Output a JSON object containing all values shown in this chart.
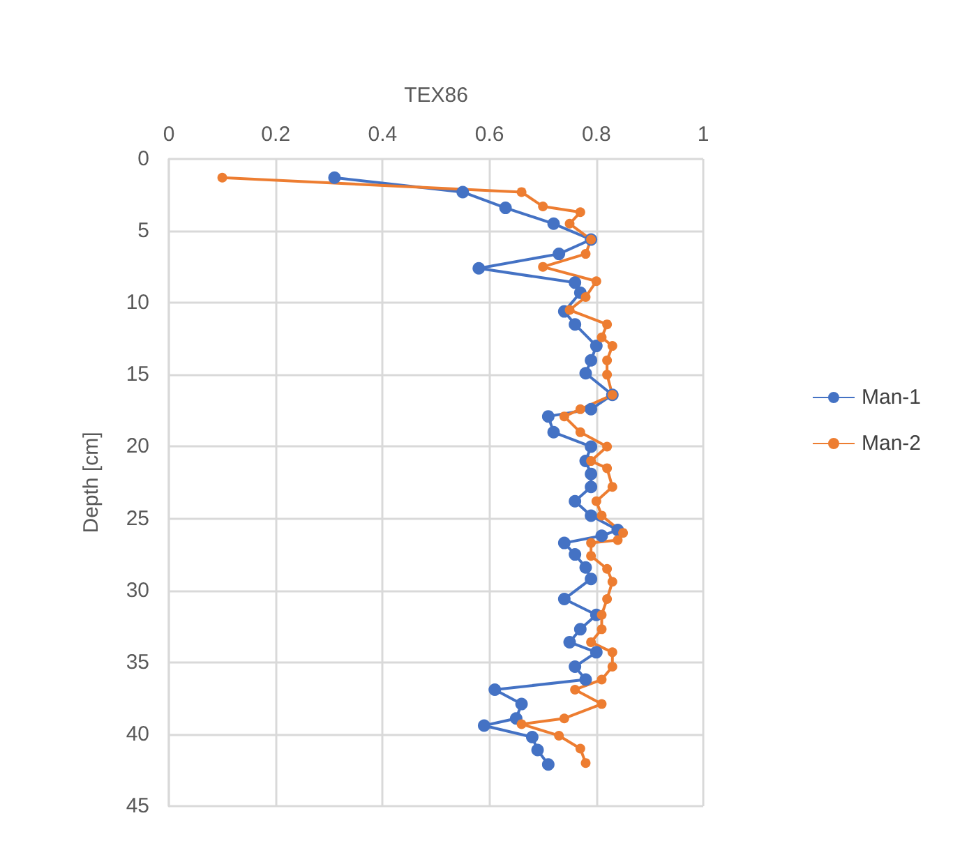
{
  "chart_data": {
    "type": "line",
    "xlabel": "TEX86",
    "ylabel": "Depth [cm]",
    "xlim": [
      0,
      1
    ],
    "xticks": [
      0,
      0.2,
      0.4,
      0.6,
      0.8,
      1
    ],
    "ylim": [
      45,
      0
    ],
    "yticks": [
      0,
      5,
      10,
      15,
      20,
      25,
      30,
      35,
      40,
      45
    ],
    "grid": true,
    "legend": "right",
    "marker": "circle",
    "line_style": "solid",
    "series": [
      {
        "name": "Man-1",
        "color": "#4472c4",
        "x": [
          0.31,
          0.55,
          0.63,
          0.72,
          0.79,
          0.73,
          0.58,
          0.76,
          0.77,
          0.74,
          0.76,
          0.8,
          0.79,
          0.78,
          0.83,
          0.79,
          0.71,
          0.72,
          0.79,
          0.78,
          0.79,
          0.79,
          0.76,
          0.79,
          0.84,
          0.81,
          0.74,
          0.76,
          0.78,
          0.79,
          0.74,
          0.8,
          0.77,
          0.75,
          0.8,
          0.76,
          0.78,
          0.61,
          0.66,
          0.65,
          0.59,
          0.68,
          0.69,
          0.71
        ],
        "values": [
          1.3,
          2.3,
          3.4,
          4.5,
          5.6,
          6.6,
          7.6,
          8.6,
          9.3,
          10.6,
          11.5,
          13.0,
          14.0,
          14.9,
          16.4,
          17.4,
          17.9,
          19.0,
          20.0,
          21.0,
          21.9,
          22.8,
          23.8,
          24.8,
          25.8,
          26.2,
          26.7,
          27.5,
          28.4,
          29.2,
          30.6,
          31.7,
          32.7,
          33.6,
          34.3,
          35.3,
          36.2,
          36.9,
          37.9,
          38.9,
          39.4,
          40.2,
          41.1,
          42.1
        ]
      },
      {
        "name": "Man-2",
        "color": "#ed7d31",
        "x": [
          0.1,
          0.66,
          0.7,
          0.77,
          0.75,
          0.79,
          0.78,
          0.7,
          0.8,
          0.78,
          0.75,
          0.82,
          0.81,
          0.83,
          0.82,
          0.82,
          0.83,
          0.77,
          0.74,
          0.77,
          0.82,
          0.79,
          0.82,
          0.83,
          0.8,
          0.81,
          0.85,
          0.84,
          0.79,
          0.79,
          0.82,
          0.83,
          0.82,
          0.81,
          0.81,
          0.79,
          0.83,
          0.83,
          0.81,
          0.76,
          0.81,
          0.74,
          0.66,
          0.73,
          0.77,
          0.78
        ],
        "values": [
          1.3,
          2.3,
          3.3,
          3.7,
          4.5,
          5.6,
          6.6,
          7.5,
          8.5,
          9.6,
          10.5,
          11.5,
          12.4,
          13.0,
          14.0,
          15.0,
          16.4,
          17.4,
          17.9,
          19.0,
          20.0,
          21.0,
          21.5,
          22.8,
          23.8,
          24.8,
          26.0,
          26.5,
          26.7,
          27.6,
          28.5,
          29.4,
          30.6,
          31.7,
          32.7,
          33.6,
          34.3,
          35.3,
          36.2,
          36.9,
          37.9,
          38.9,
          39.3,
          40.1,
          41.0,
          42.0
        ]
      }
    ]
  }
}
